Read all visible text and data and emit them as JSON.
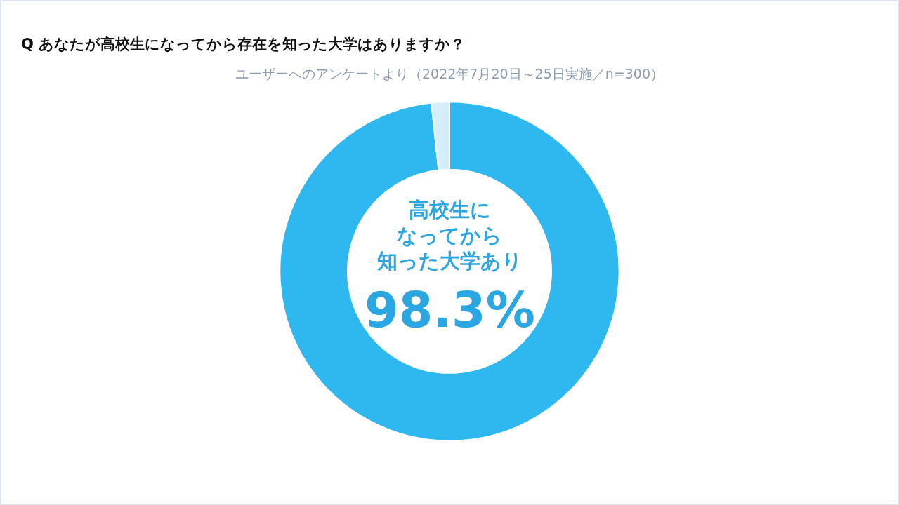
{
  "chart_data": {
    "type": "donut",
    "title": "Q あなたが高校生になってから存在を知った大学はありますか？",
    "subtitle": "ユーザーへのアンケートより（2022年7月20日～25日実施／n=300）",
    "categories": [
      null,
      null
    ],
    "annotations": [
      "高校生に",
      "なってから",
      "知った大学あり"
    ],
    "values": [
      98.3,
      1.7
    ],
    "colors": [
      "#2fb8f0",
      "#d4effa"
    ],
    "value_labels": [
      "98.3%",
      null
    ],
    "legend": false
  }
}
